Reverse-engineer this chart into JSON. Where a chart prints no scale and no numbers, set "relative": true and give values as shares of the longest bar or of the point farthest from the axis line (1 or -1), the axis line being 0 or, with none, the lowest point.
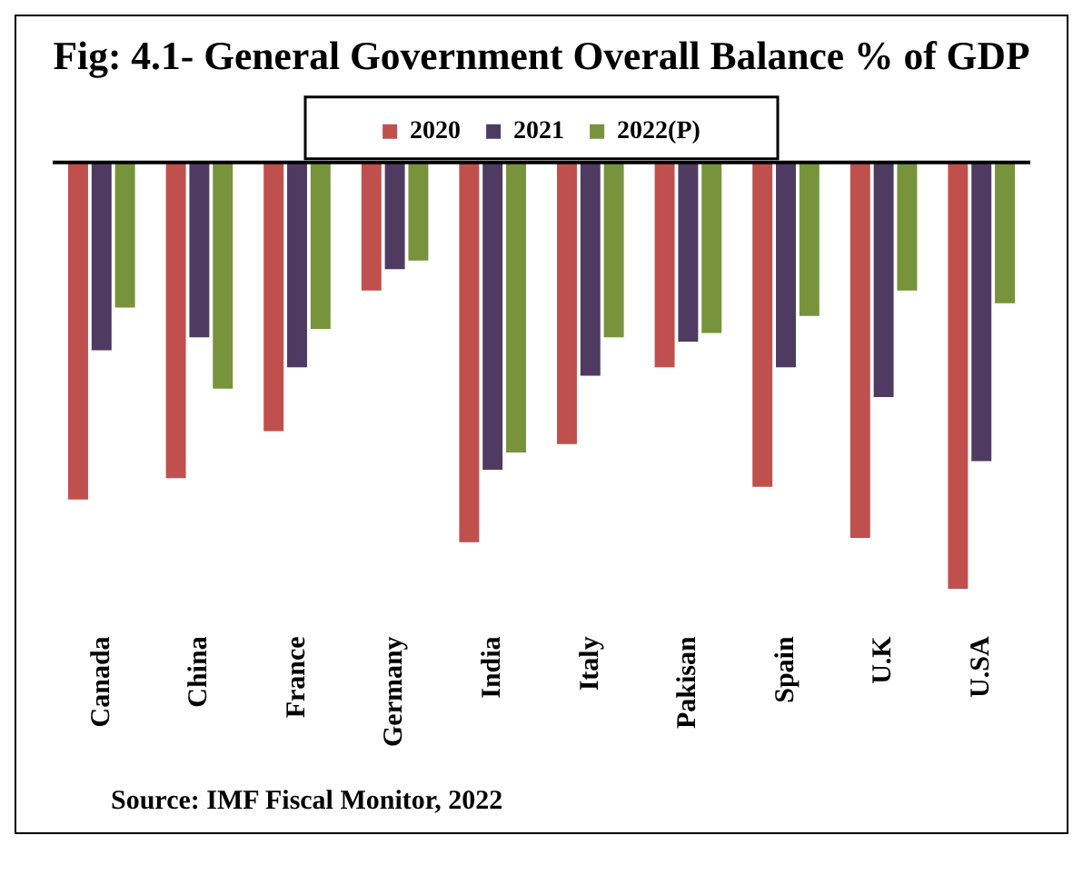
{
  "chart_data": {
    "type": "bar",
    "title": "Fig: 4.1- General Government Overall Balance % of GDP",
    "relative": true,
    "legend": "top",
    "categories": [
      "Canada",
      "China",
      "France",
      "Germany",
      "India",
      "Italy",
      "Pakisan",
      "Spain",
      "U.K",
      "U.SA"
    ],
    "series": [
      {
        "name": "2020",
        "color": "#c0504d",
        "values": [
          -0.79,
          -0.74,
          -0.63,
          -0.3,
          -0.89,
          -0.66,
          -0.48,
          -0.76,
          -0.88,
          -1
        ]
      },
      {
        "name": "2021",
        "color": "#4f3b62",
        "values": [
          -0.44,
          -0.41,
          -0.48,
          -0.25,
          -0.72,
          -0.5,
          -0.42,
          -0.48,
          -0.55,
          -0.7
        ]
      },
      {
        "name": "2022(P)",
        "color": "#77933c",
        "values": [
          -0.34,
          -0.53,
          -0.39,
          -0.23,
          -0.68,
          -0.41,
          -0.4,
          -0.36,
          -0.3,
          -0.33
        ]
      }
    ],
    "annotations": [
      "Source: IMF Fiscal Monitor, 2022"
    ]
  }
}
